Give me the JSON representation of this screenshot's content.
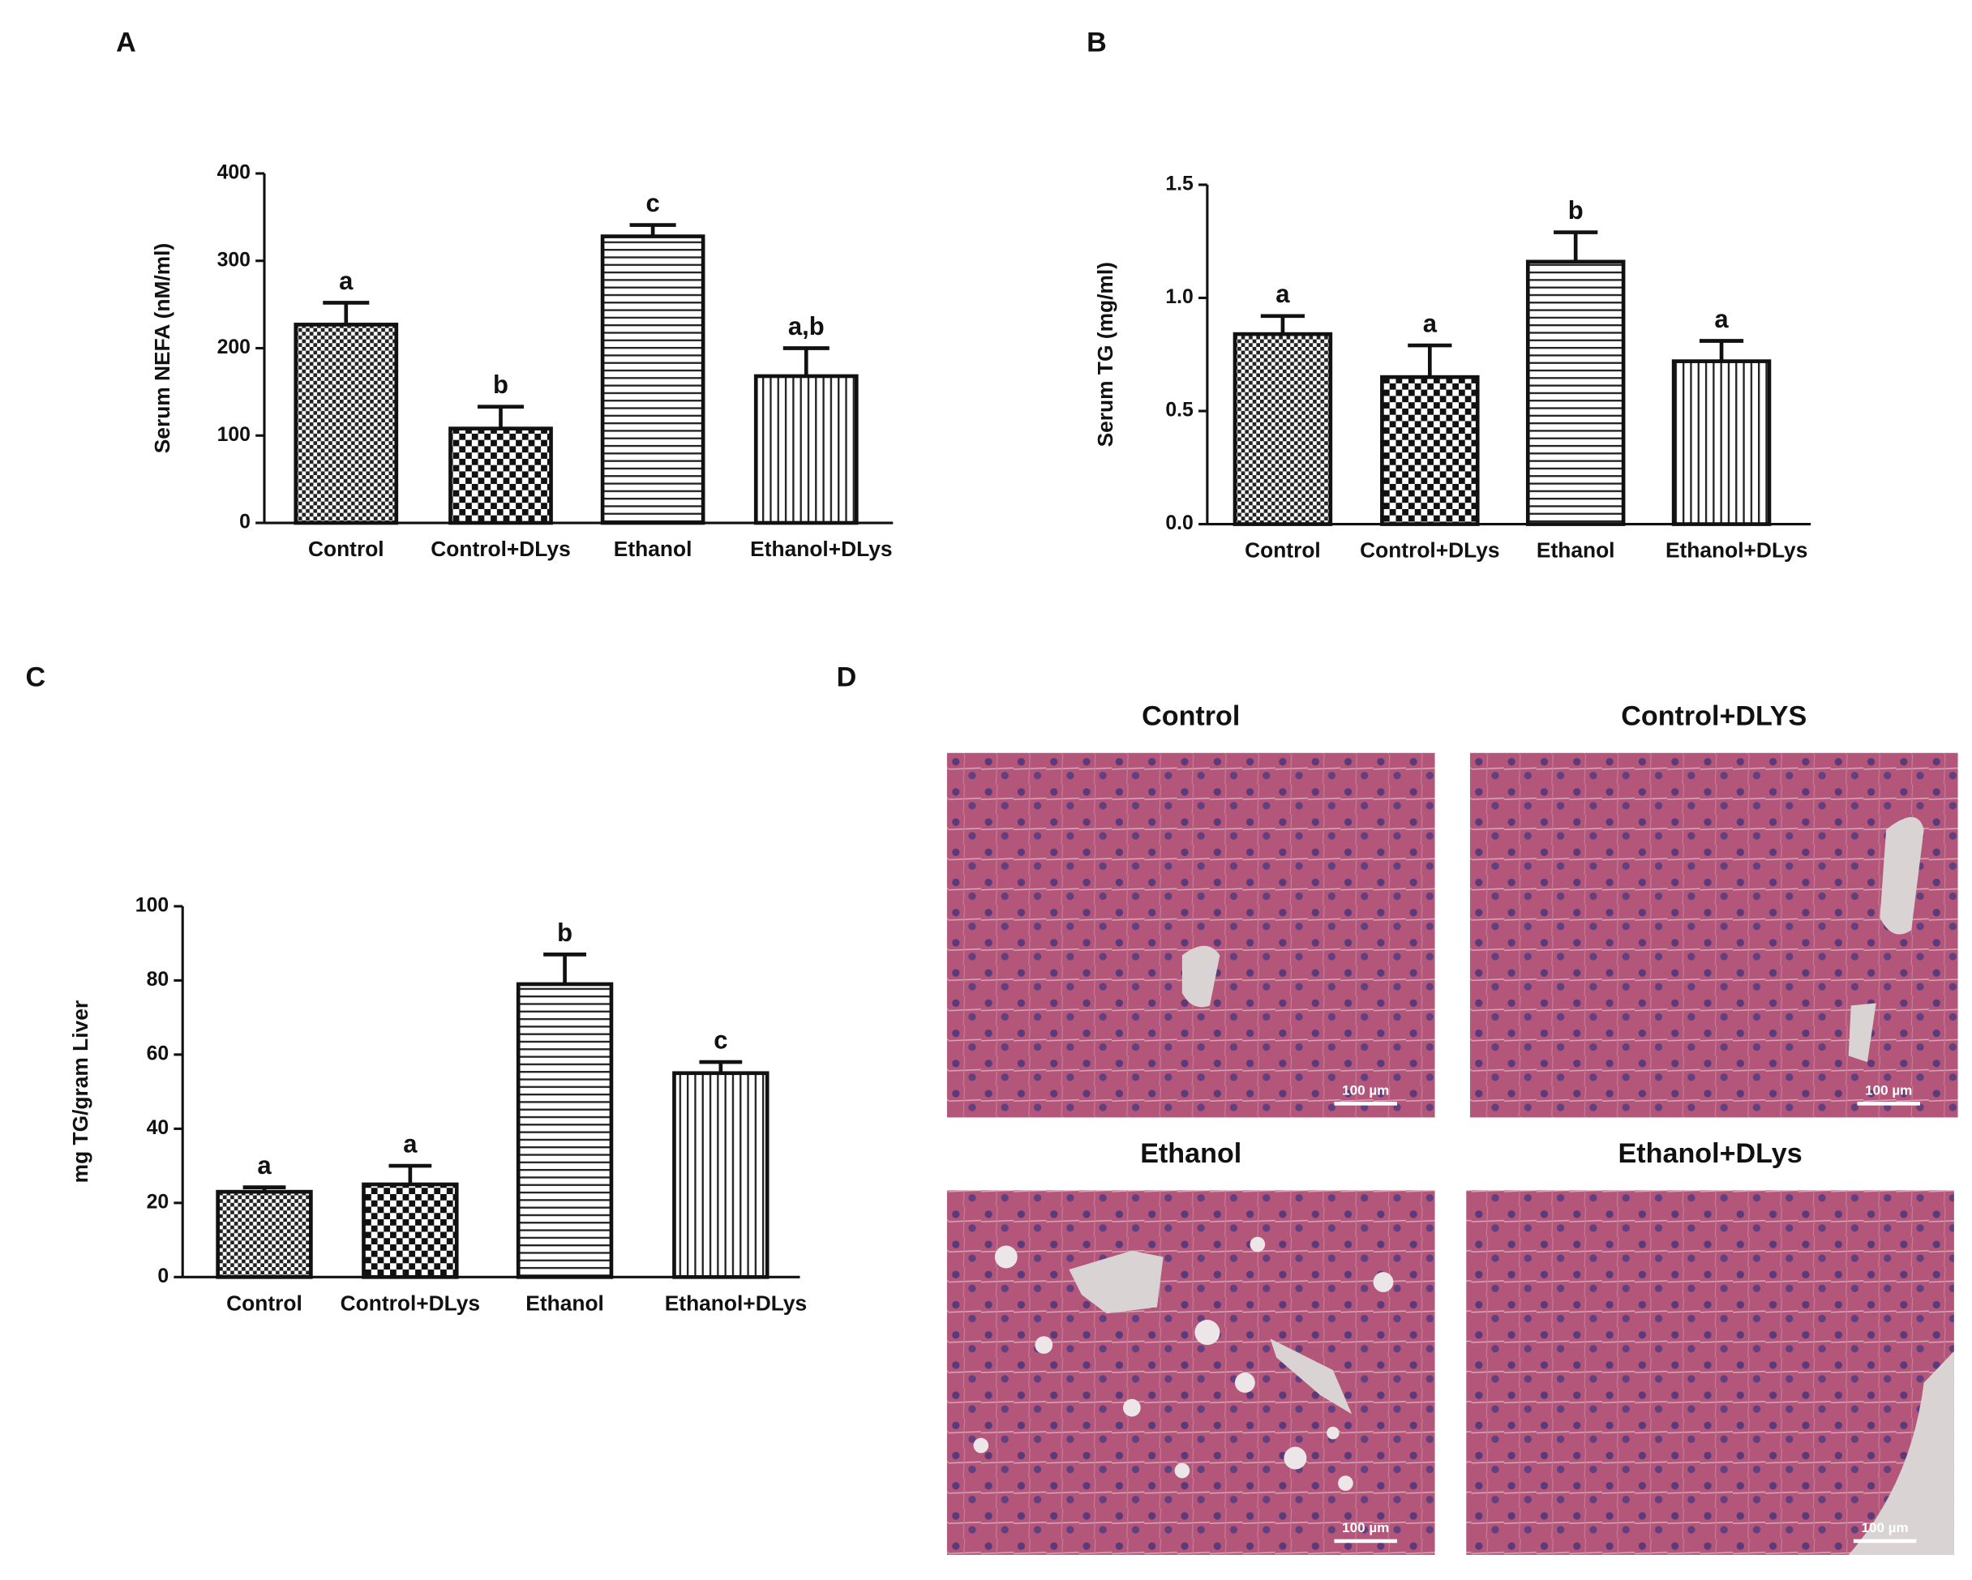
{
  "chart_data": [
    {
      "type": "bar",
      "panel_label": "A",
      "ylabel": "Serum NEFA (nM/ml)",
      "categories": [
        "Control",
        "Control+DLys",
        "Ethanol",
        "Ethanol+DLys"
      ],
      "values": [
        227,
        108,
        328,
        168
      ],
      "errors": [
        25,
        25,
        13,
        32
      ],
      "annotations": [
        "a",
        "b",
        "c",
        "a,b"
      ],
      "patterns": [
        "checker-fine",
        "checker",
        "horizontal",
        "vertical"
      ],
      "ylim": [
        0,
        400
      ],
      "yticks": [
        0,
        100,
        200,
        300,
        400
      ]
    },
    {
      "type": "bar",
      "panel_label": "B",
      "ylabel": "Serum TG (mg/ml)",
      "categories": [
        "Control",
        "Control+DLys",
        "Ethanol",
        "Ethanol+DLys"
      ],
      "values": [
        0.84,
        0.65,
        1.16,
        0.72
      ],
      "errors": [
        0.08,
        0.14,
        0.13,
        0.09
      ],
      "annotations": [
        "a",
        "a",
        "b",
        "a"
      ],
      "patterns": [
        "checker-fine",
        "checker",
        "horizontal",
        "vertical"
      ],
      "ylim": [
        0,
        1.5
      ],
      "yticks": [
        {
          "value": 0,
          "label": "0.0"
        },
        0.5,
        {
          "value": 1,
          "label": "1.0"
        },
        1.5
      ]
    },
    {
      "type": "bar",
      "panel_label": "C",
      "ylabel": "mg TG/gram Liver",
      "categories": [
        "Control",
        "Control+DLys",
        "Ethanol",
        "Ethanol+DLys"
      ],
      "values": [
        23,
        25,
        79,
        55
      ],
      "errors": [
        1.2,
        5,
        8,
        3
      ],
      "annotations": [
        "a",
        "a",
        "b",
        "c"
      ],
      "patterns": [
        "checker-fine",
        "checker",
        "horizontal",
        "vertical"
      ],
      "ylim": [
        0,
        100
      ],
      "yticks": [
        0,
        20,
        40,
        60,
        80,
        100
      ]
    }
  ],
  "panel_d": {
    "label": "D",
    "images": [
      {
        "title": "Control",
        "scale_bar": "100 µm"
      },
      {
        "title": "Control+DLYS",
        "scale_bar": "100 µm"
      },
      {
        "title": "Ethanol",
        "scale_bar": "100 µm"
      },
      {
        "title": "Ethanol+DLys",
        "scale_bar": "100 µm"
      }
    ]
  }
}
